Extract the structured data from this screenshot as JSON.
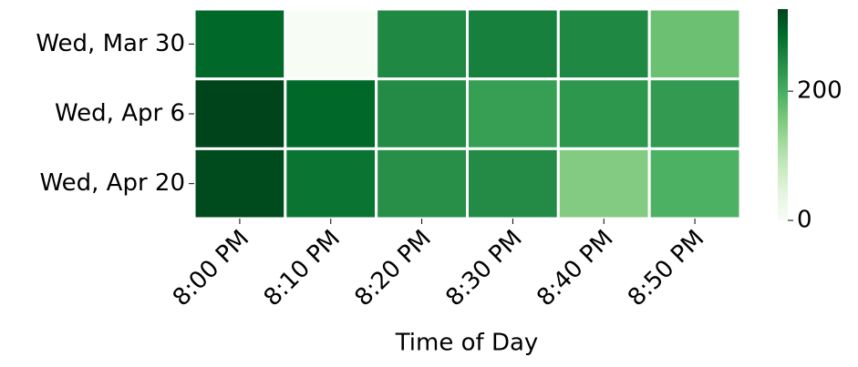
{
  "chart_data": {
    "type": "heatmap",
    "x_label": "Time of Day",
    "x_categories": [
      "8:00 PM",
      "8:10 PM",
      "8:20 PM",
      "8:30 PM",
      "8:40 PM",
      "8:50 PM"
    ],
    "y_categories": [
      "Wed, Mar 30",
      "Wed, Apr 6",
      "Wed, Apr 20"
    ],
    "values": [
      [
        290,
        0,
        250,
        260,
        250,
        170
      ],
      [
        327,
        290,
        245,
        220,
        230,
        225
      ],
      [
        320,
        275,
        240,
        245,
        150,
        195
      ]
    ],
    "colormap": "Greens",
    "zlim": [
      0,
      327
    ],
    "zticks": [
      0,
      200
    ]
  }
}
